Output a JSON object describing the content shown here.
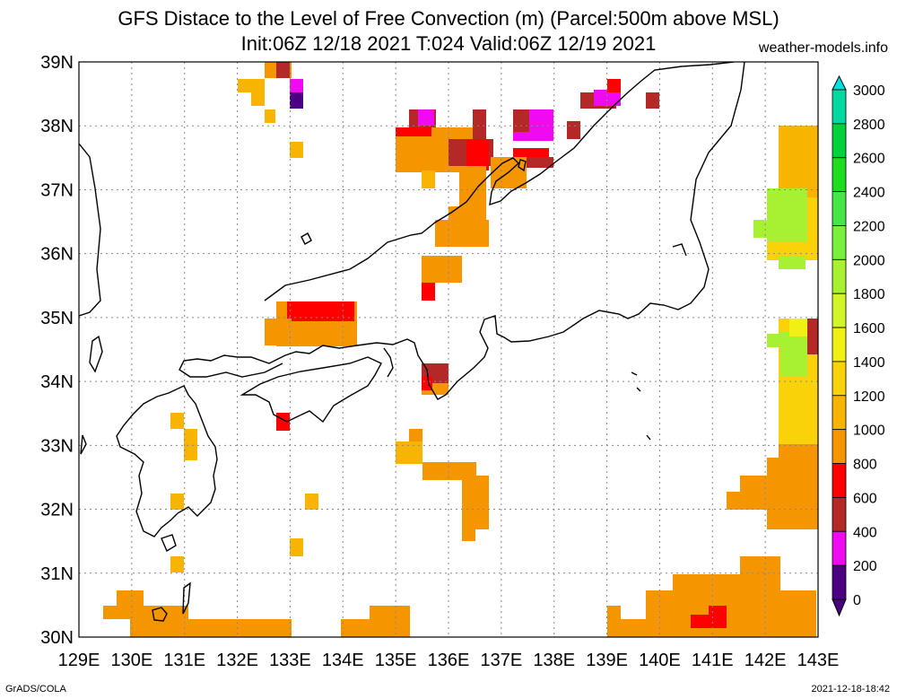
{
  "header": {
    "title_line1": "GFS Distace to the Level of Free Convection (m) (Parcel:500m above MSL)",
    "title_line2": "Init:06Z 12/18 2021 T:024 Valid:06Z 12/19 2021",
    "site": "weather-models.info"
  },
  "footer": {
    "left": "GrADS/COLA",
    "right": "2021-12-18-18:42"
  },
  "map": {
    "lon_labels": [
      "129E",
      "130E",
      "131E",
      "132E",
      "133E",
      "134E",
      "135E",
      "136E",
      "137E",
      "138E",
      "139E",
      "140E",
      "141E",
      "142E",
      "143E"
    ],
    "lat_labels": [
      "39N",
      "38N",
      "37N",
      "36N",
      "35N",
      "34N",
      "33N",
      "32N",
      "31N",
      "30N"
    ],
    "lon_range": [
      129,
      143
    ],
    "lat_range": [
      30,
      39
    ],
    "grid": true
  },
  "legend": {
    "labels": [
      "3000",
      "2800",
      "2600",
      "2400",
      "2200",
      "2000",
      "1800",
      "1600",
      "1400",
      "1200",
      "1000",
      "800",
      "600",
      "400",
      "200",
      "0"
    ],
    "colors": [
      "#00e0e0",
      "#00d8a0",
      "#00d23c",
      "#1edc1e",
      "#46e646",
      "#78f03c",
      "#a8f032",
      "#d2f528",
      "#f0f014",
      "#fad20a",
      "#f7b400",
      "#f59600",
      "#ff0000",
      "#b42828",
      "#f00af0",
      "#4b0082"
    ]
  },
  "palette": {
    "purple": "#4b0082",
    "magenta": "#f00af0",
    "brown": "#b42828",
    "red": "#ff0000",
    "orange": "#f59600",
    "orange_yellow": "#f7b400",
    "gold": "#fad20a",
    "yellow": "#f0f014",
    "lime": "#a8f032",
    "green": "#78f03c"
  }
}
